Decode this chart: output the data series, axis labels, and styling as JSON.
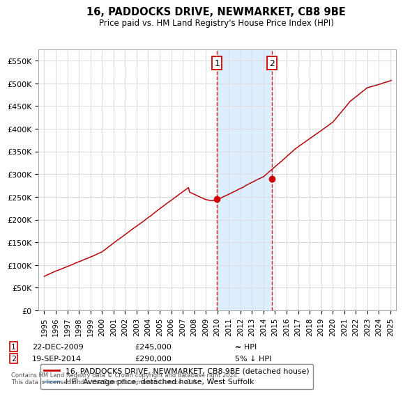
{
  "title": "16, PADDOCKS DRIVE, NEWMARKET, CB8 9BE",
  "subtitle": "Price paid vs. HM Land Registry's House Price Index (HPI)",
  "line1_label": "16, PADDOCKS DRIVE, NEWMARKET, CB8 9BE (detached house)",
  "line2_label": "HPI: Average price, detached house, West Suffolk",
  "line1_color": "#cc0000",
  "line2_color": "#7aafd4",
  "sale1_date_num": 2009.97,
  "sale1_price": 245000,
  "sale2_date_num": 2014.72,
  "sale2_price": 290000,
  "ann1_date": "22-DEC-2009",
  "ann1_price": "£245,000",
  "ann1_rel": "≈ HPI",
  "ann2_date": "19-SEP-2014",
  "ann2_price": "£290,000",
  "ann2_rel": "5% ↓ HPI",
  "footnote": "Contains HM Land Registry data © Crown copyright and database right 2024.\nThis data is licensed under the Open Government Licence v3.0.",
  "ylim": [
    0,
    575000
  ],
  "yticks": [
    0,
    50000,
    100000,
    150000,
    200000,
    250000,
    300000,
    350000,
    400000,
    450000,
    500000,
    550000
  ],
  "ytick_labels": [
    "£0",
    "£50K",
    "£100K",
    "£150K",
    "£200K",
    "£250K",
    "£300K",
    "£350K",
    "£400K",
    "£450K",
    "£500K",
    "£550K"
  ],
  "xlim": [
    1994.5,
    2025.5
  ],
  "background_color": "#ffffff",
  "grid_color": "#dddddd",
  "shaded_color": "#ddeeff"
}
